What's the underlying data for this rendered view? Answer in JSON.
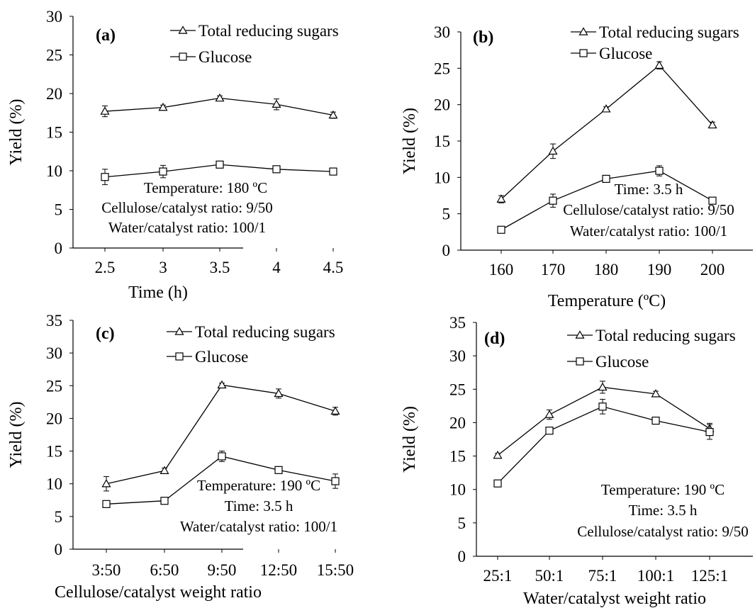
{
  "chart_data": [
    {
      "type": "line",
      "panel_label": "(a)",
      "xlabel": "Time (h)",
      "ylabel": "Yield (%)",
      "categories": [
        "2.5",
        "3",
        "3.5",
        "4",
        "4.5"
      ],
      "ylim": [
        0,
        30
      ],
      "yticks": [
        0,
        5,
        10,
        15,
        20,
        25,
        30
      ],
      "series": [
        {
          "name": "Total reducing sugars",
          "marker": "triangle",
          "values": [
            17.7,
            18.2,
            19.4,
            18.6,
            17.2
          ],
          "errors": [
            0.7,
            0.3,
            0.3,
            0.7,
            0.4
          ]
        },
        {
          "name": "Glucose",
          "marker": "square",
          "values": [
            9.2,
            9.9,
            10.8,
            10.2,
            9.9
          ],
          "errors": [
            1.0,
            0.8,
            0.4,
            0.2,
            0.2
          ]
        }
      ],
      "annotations": [
        "Temperature: 180 ºC",
        "Cellulose/catalyst ratio: 9/50",
        "Water/catalyst ratio: 100/1"
      ]
    },
    {
      "type": "line",
      "panel_label": "(b)",
      "xlabel": "Temperature (ºC)",
      "ylabel": "Yield (%)",
      "categories": [
        "160",
        "170",
        "180",
        "190",
        "200"
      ],
      "ylim": [
        0,
        30
      ],
      "yticks": [
        0,
        5,
        10,
        15,
        20,
        25,
        30
      ],
      "series": [
        {
          "name": "Total reducing sugars",
          "marker": "triangle",
          "values": [
            7.0,
            13.6,
            19.4,
            25.4,
            17.2
          ],
          "errors": [
            0.5,
            1.0,
            0.3,
            0.5,
            0.4
          ]
        },
        {
          "name": "Glucose",
          "marker": "square",
          "values": [
            2.8,
            6.8,
            9.8,
            10.9,
            6.8
          ],
          "errors": [
            0.2,
            0.9,
            0.3,
            0.7,
            0.2
          ]
        }
      ],
      "annotations": [
        "Time: 3.5 h",
        "Cellulose/catalyst ratio: 9/50",
        "Water/catalyst ratio: 100/1"
      ]
    },
    {
      "type": "line",
      "panel_label": "(c)",
      "xlabel": "Cellulose/catalyst weight ratio",
      "ylabel": "Yield (%)",
      "categories": [
        "3:50",
        "6:50",
        "9:50",
        "12:50",
        "15:50"
      ],
      "ylim": [
        0,
        35
      ],
      "yticks": [
        0,
        5,
        10,
        15,
        20,
        25,
        30,
        35
      ],
      "series": [
        {
          "name": "Total reducing sugars",
          "marker": "triangle",
          "values": [
            10.0,
            12.0,
            25.1,
            23.8,
            21.1
          ],
          "errors": [
            1.1,
            0.4,
            0.3,
            0.7,
            0.6
          ]
        },
        {
          "name": "Glucose",
          "marker": "square",
          "values": [
            6.9,
            7.4,
            14.2,
            12.1,
            10.4
          ],
          "errors": [
            0.2,
            0.3,
            0.8,
            0.3,
            1.1
          ]
        }
      ],
      "annotations": [
        "Temperature: 190 ºC",
        "Time: 3.5 h",
        "Water/catalyst ratio: 100/1"
      ]
    },
    {
      "type": "line",
      "panel_label": "(d)",
      "xlabel": "Water/catalyst weight ratio",
      "ylabel": "Yield (%)",
      "categories": [
        "25:1",
        "50:1",
        "75:1",
        "100:1",
        "125:1"
      ],
      "ylim": [
        0,
        35
      ],
      "yticks": [
        0,
        5,
        10,
        15,
        20,
        25,
        30,
        35
      ],
      "series": [
        {
          "name": "Total reducing sugars",
          "marker": "triangle",
          "values": [
            15.1,
            21.2,
            25.3,
            24.3,
            19.1
          ],
          "errors": [
            0.3,
            0.7,
            0.9,
            0.4,
            0.8
          ]
        },
        {
          "name": "Glucose",
          "marker": "square",
          "values": [
            10.9,
            18.8,
            22.4,
            20.3,
            18.6
          ],
          "errors": [
            0.2,
            0.3,
            1.1,
            0.3,
            1.1
          ]
        }
      ],
      "annotations": [
        "Temperature: 190 ºC",
        "Time: 3.5 h",
        "Cellulose/catalyst ratio: 9/50"
      ]
    }
  ]
}
